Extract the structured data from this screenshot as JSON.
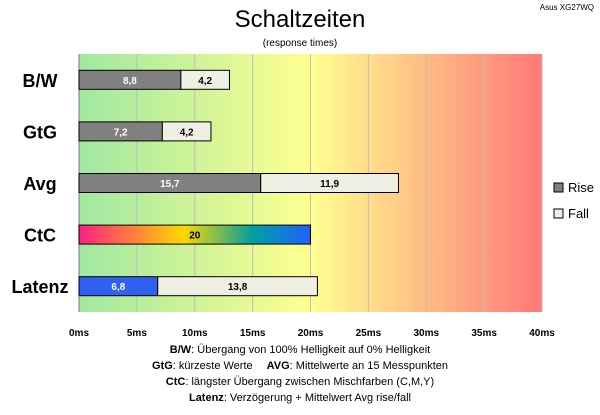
{
  "header": {
    "title": "Schaltzeiten",
    "subtitle": "(response times)",
    "model": "Asus XG27WQ"
  },
  "chart_data": {
    "type": "bar",
    "orientation": "horizontal",
    "stacked": true,
    "categories": [
      "B/W",
      "GtG",
      "Avg",
      "CtC",
      "Latenz"
    ],
    "series": [
      {
        "name": "Rise",
        "values": [
          8.8,
          7.2,
          15.7,
          null,
          null
        ],
        "color": "#808080"
      },
      {
        "name": "Fall",
        "values": [
          4.2,
          4.2,
          11.9,
          null,
          13.8
        ],
        "color": "#efefe4"
      }
    ],
    "ctc": {
      "category": "CtC",
      "value": 20,
      "value_label": "20",
      "gradient": [
        "#ff2080",
        "#ffd700",
        "#00a0a0",
        "#2060ff"
      ]
    },
    "latenz": {
      "category": "Latenz",
      "value": 6.8,
      "value_label": "6,8",
      "color": "#3060f0"
    },
    "value_labels": {
      "Rise": [
        "8,8",
        "7,2",
        "15,7",
        "",
        ""
      ],
      "Fall": [
        "4,2",
        "4,2",
        "11,9",
        "",
        "13,8"
      ]
    },
    "xlim": [
      0,
      40
    ],
    "xticks": [
      0,
      5,
      10,
      15,
      20,
      25,
      30,
      35,
      40
    ],
    "xtick_labels": [
      "0ms",
      "5ms",
      "10ms",
      "15ms",
      "20ms",
      "25ms",
      "30ms",
      "35ms",
      "40ms"
    ],
    "grid": true,
    "background_gradient": [
      "#a0e8a0",
      "#ffff90",
      "#ff7878"
    ],
    "legend_position": "right"
  },
  "footnotes": [
    {
      "key": "B/W",
      "text": ":  Übergang von 100% Helligkeit auf 0% Helligkeit"
    },
    {
      "key": "GtG",
      "text": ": kürzeste  Werte",
      "key2": "AVG",
      "text2": ": Mittelwerte  an 15 Messpunkten"
    },
    {
      "key": "CtC",
      "text": ": längster Übergang  zwischen Mischfarben (C,M,Y)"
    },
    {
      "key": "Latenz",
      "text": ": Verzögerung  + Mittelwert Avg rise/fall"
    }
  ]
}
